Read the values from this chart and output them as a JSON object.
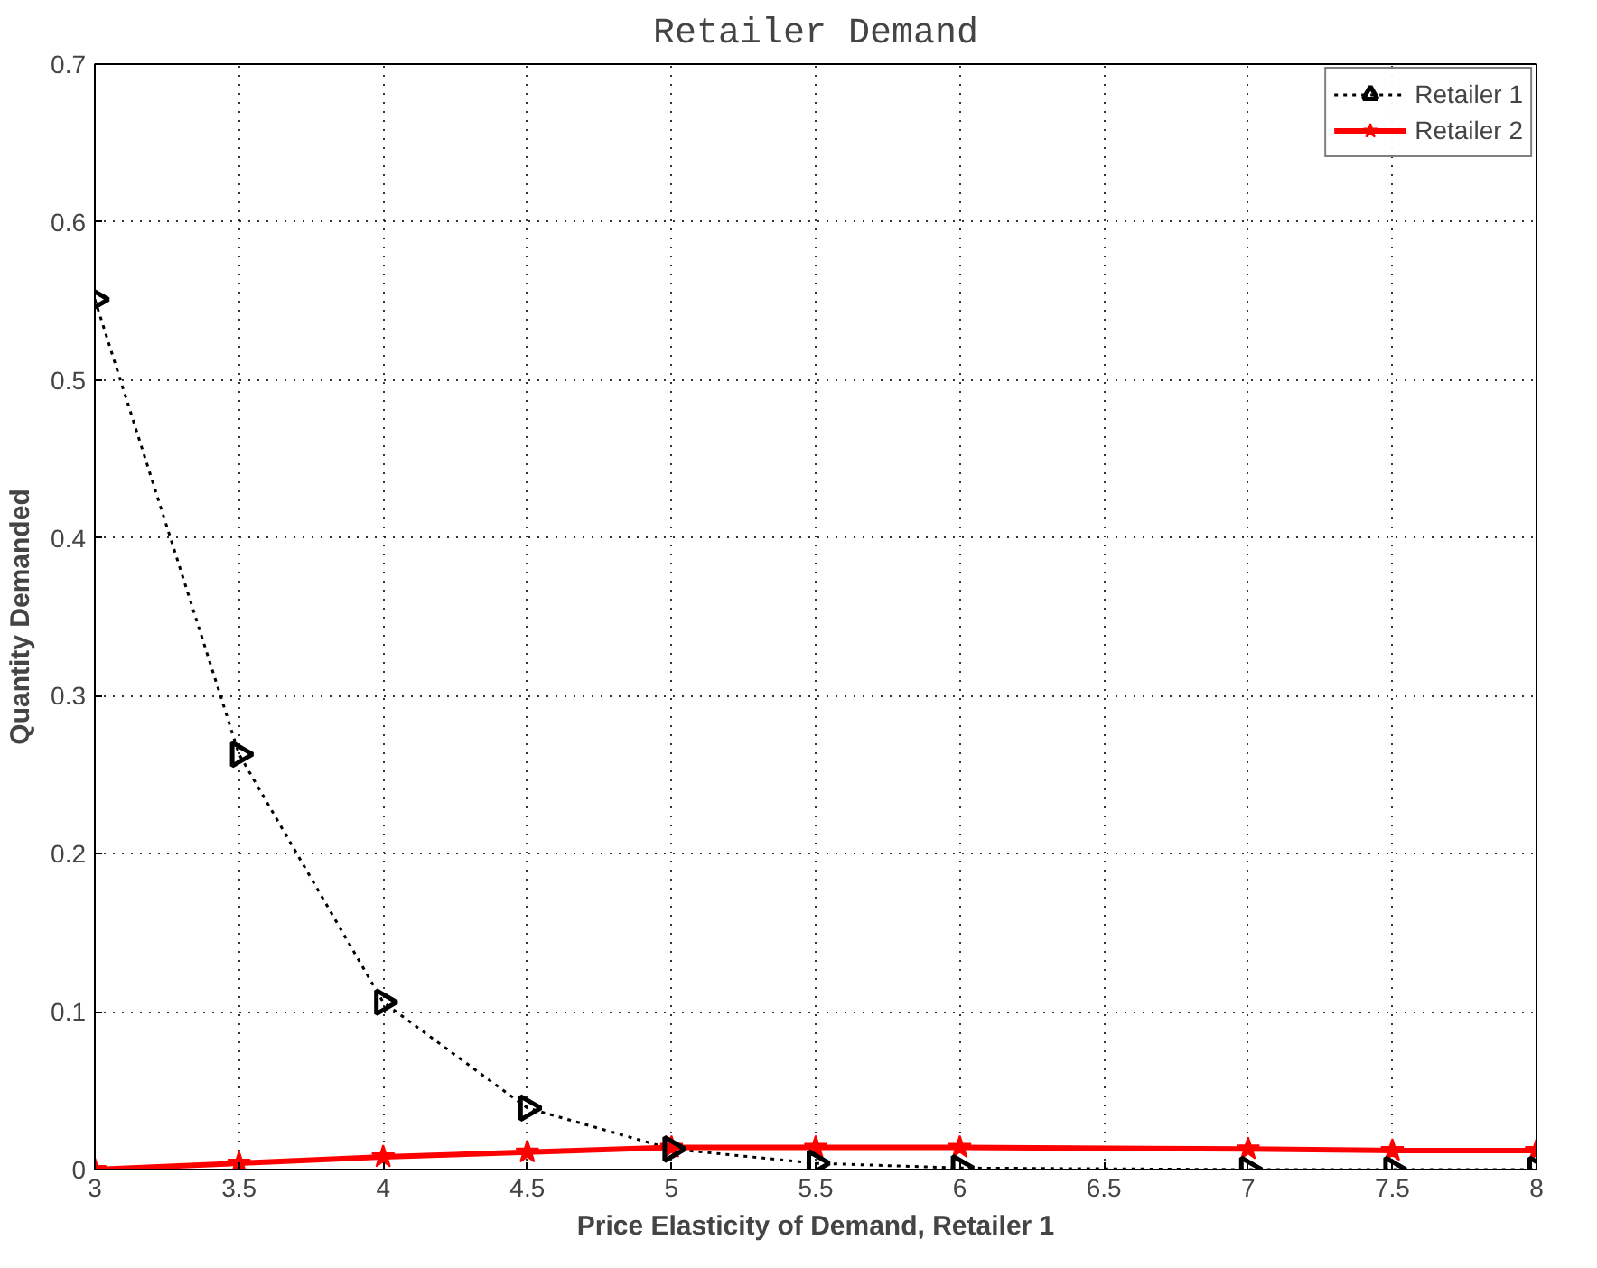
{
  "chart_data": {
    "type": "line",
    "title": "Retailer Demand",
    "xlabel": "Price Elasticity of Demand, Retailer 1",
    "ylabel": "Quantity Demanded",
    "xlim": [
      3,
      8
    ],
    "xticks": [
      3,
      3.5,
      4,
      4.5,
      5,
      5.5,
      6,
      6.5,
      7,
      7.5,
      8
    ],
    "ylim": [
      0,
      0.7
    ],
    "yticks": [
      0,
      0.1,
      0.2,
      0.3,
      0.4,
      0.5,
      0.6,
      0.7
    ],
    "grid": true,
    "legend": "top right",
    "series": [
      {
        "name": "Retailer 1",
        "color": "#000000",
        "marker": "triangle",
        "line_style": "dotted",
        "x": [
          3,
          3.5,
          4,
          4.5,
          5,
          5.5,
          6,
          7,
          7.5,
          8
        ],
        "values": [
          0.551,
          0.263,
          0.106,
          0.039,
          0.013,
          0.004,
          0.001,
          0.0,
          0.0,
          0.0
        ]
      },
      {
        "name": "Retailer 2",
        "color": "#ff0000",
        "marker": "star",
        "line_style": "solid",
        "x": [
          3,
          3.5,
          4,
          4.5,
          5,
          5.5,
          6,
          7,
          7.5,
          8
        ],
        "values": [
          0.0,
          0.004,
          0.008,
          0.011,
          0.014,
          0.014,
          0.014,
          0.013,
          0.012,
          0.012
        ]
      }
    ]
  }
}
